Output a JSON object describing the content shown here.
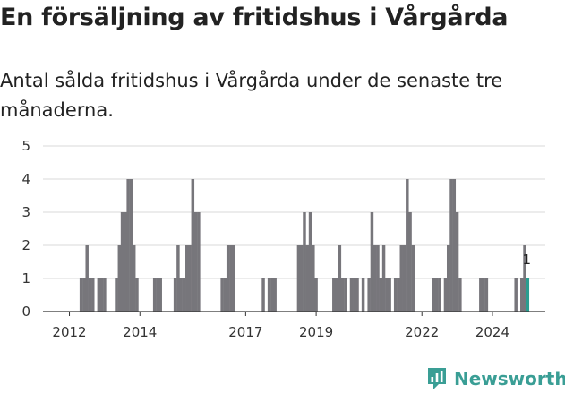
{
  "header": {
    "title": "En försäljning av fritidshus i Vårgårda",
    "subtitle": "Antal sålda fritidshus i Vårgårda under de senaste tre månaderna."
  },
  "brand": {
    "name": "Newsworthy",
    "color": "#3a9e95"
  },
  "colors": {
    "bar": "#77767b",
    "highlight": "#2a9d8f",
    "grid": "#d9d9d9",
    "axis": "#333333"
  },
  "chart_data": {
    "type": "bar",
    "title": "",
    "xlabel": "",
    "ylabel": "",
    "grid": "horizontal",
    "ylim": [
      0,
      5
    ],
    "yticks": [
      0,
      1,
      2,
      3,
      4,
      5
    ],
    "xlim": [
      "2011-04",
      "2025-07"
    ],
    "xticks": [
      "2012",
      "2014",
      "2017",
      "2019",
      "2022",
      "2024"
    ],
    "xtick_positions": [
      "2012-01",
      "2014-01",
      "2017-01",
      "2019-01",
      "2022-01",
      "2024-01"
    ],
    "series": [
      {
        "points": [
          {
            "x": "2012-05",
            "y": 1
          },
          {
            "x": "2012-06",
            "y": 1
          },
          {
            "x": "2012-07",
            "y": 2
          },
          {
            "x": "2012-08",
            "y": 1
          },
          {
            "x": "2012-09",
            "y": 1
          },
          {
            "x": "2012-11",
            "y": 1
          },
          {
            "x": "2012-12",
            "y": 1
          },
          {
            "x": "2013-01",
            "y": 1
          },
          {
            "x": "2013-05",
            "y": 1
          },
          {
            "x": "2013-06",
            "y": 2
          },
          {
            "x": "2013-07",
            "y": 3
          },
          {
            "x": "2013-08",
            "y": 3
          },
          {
            "x": "2013-09",
            "y": 4
          },
          {
            "x": "2013-10",
            "y": 4
          },
          {
            "x": "2013-11",
            "y": 2
          },
          {
            "x": "2013-12",
            "y": 1
          },
          {
            "x": "2014-06",
            "y": 1
          },
          {
            "x": "2014-07",
            "y": 1
          },
          {
            "x": "2014-08",
            "y": 1
          },
          {
            "x": "2015-01",
            "y": 1
          },
          {
            "x": "2015-02",
            "y": 2
          },
          {
            "x": "2015-03",
            "y": 1
          },
          {
            "x": "2015-04",
            "y": 1
          },
          {
            "x": "2015-05",
            "y": 2
          },
          {
            "x": "2015-06",
            "y": 2
          },
          {
            "x": "2015-07",
            "y": 4
          },
          {
            "x": "2015-08",
            "y": 3
          },
          {
            "x": "2015-09",
            "y": 3
          },
          {
            "x": "2016-05",
            "y": 1
          },
          {
            "x": "2016-06",
            "y": 1
          },
          {
            "x": "2016-07",
            "y": 2
          },
          {
            "x": "2016-08",
            "y": 2
          },
          {
            "x": "2016-09",
            "y": 2
          },
          {
            "x": "2017-07",
            "y": 1
          },
          {
            "x": "2017-09",
            "y": 1
          },
          {
            "x": "2017-10",
            "y": 1
          },
          {
            "x": "2017-11",
            "y": 1
          },
          {
            "x": "2018-07",
            "y": 2
          },
          {
            "x": "2018-08",
            "y": 2
          },
          {
            "x": "2018-09",
            "y": 3
          },
          {
            "x": "2018-10",
            "y": 2
          },
          {
            "x": "2018-11",
            "y": 3
          },
          {
            "x": "2018-12",
            "y": 2
          },
          {
            "x": "2019-01",
            "y": 1
          },
          {
            "x": "2019-07",
            "y": 1
          },
          {
            "x": "2019-08",
            "y": 1
          },
          {
            "x": "2019-09",
            "y": 2
          },
          {
            "x": "2019-10",
            "y": 1
          },
          {
            "x": "2019-11",
            "y": 1
          },
          {
            "x": "2020-01",
            "y": 1
          },
          {
            "x": "2020-02",
            "y": 1
          },
          {
            "x": "2020-03",
            "y": 1
          },
          {
            "x": "2020-05",
            "y": 1
          },
          {
            "x": "2020-07",
            "y": 1
          },
          {
            "x": "2020-08",
            "y": 3
          },
          {
            "x": "2020-09",
            "y": 2
          },
          {
            "x": "2020-10",
            "y": 2
          },
          {
            "x": "2020-11",
            "y": 1
          },
          {
            "x": "2020-12",
            "y": 2
          },
          {
            "x": "2021-01",
            "y": 1
          },
          {
            "x": "2021-02",
            "y": 1
          },
          {
            "x": "2021-04",
            "y": 1
          },
          {
            "x": "2021-05",
            "y": 1
          },
          {
            "x": "2021-06",
            "y": 2
          },
          {
            "x": "2021-07",
            "y": 2
          },
          {
            "x": "2021-08",
            "y": 4
          },
          {
            "x": "2021-09",
            "y": 3
          },
          {
            "x": "2021-10",
            "y": 2
          },
          {
            "x": "2022-05",
            "y": 1
          },
          {
            "x": "2022-06",
            "y": 1
          },
          {
            "x": "2022-07",
            "y": 1
          },
          {
            "x": "2022-09",
            "y": 1
          },
          {
            "x": "2022-10",
            "y": 2
          },
          {
            "x": "2022-11",
            "y": 4
          },
          {
            "x": "2022-12",
            "y": 4
          },
          {
            "x": "2023-01",
            "y": 3
          },
          {
            "x": "2023-02",
            "y": 1
          },
          {
            "x": "2023-09",
            "y": 1
          },
          {
            "x": "2023-10",
            "y": 1
          },
          {
            "x": "2023-11",
            "y": 1
          },
          {
            "x": "2024-09",
            "y": 1
          },
          {
            "x": "2024-11",
            "y": 1
          },
          {
            "x": "2024-12",
            "y": 2
          },
          {
            "x": "2025-01",
            "y": 1,
            "highlight": true
          }
        ]
      }
    ],
    "annotations": [
      {
        "x": "2025-01",
        "y": 1,
        "text": "1"
      }
    ]
  }
}
